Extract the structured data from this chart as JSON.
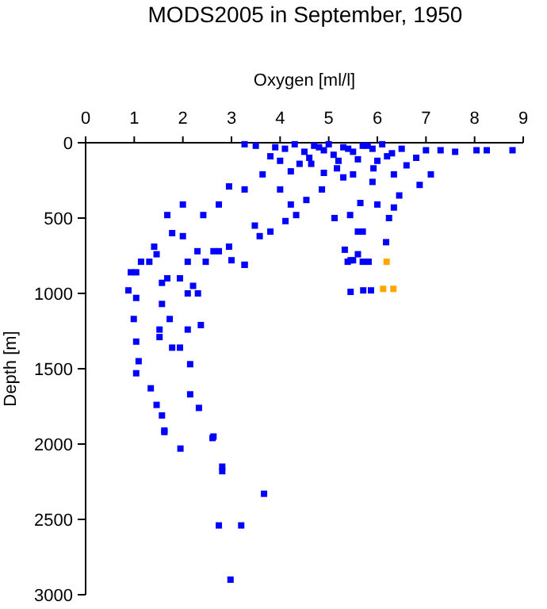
{
  "chart_data": {
    "type": "scatter",
    "title": "MODS2005 in September, 1950",
    "xlabel": "Oxygen [ml/l]",
    "ylabel": "Depth [m]",
    "xlim": [
      0,
      9
    ],
    "ylim": [
      3000,
      0
    ],
    "xticks": [
      0,
      1,
      2,
      3,
      4,
      5,
      6,
      7,
      8,
      9
    ],
    "yticks": [
      0,
      500,
      1000,
      1500,
      2000,
      2500,
      3000
    ],
    "grid": false,
    "marker": "square",
    "series": [
      {
        "color": "#0000ff",
        "x": [
          8.78,
          8.25,
          8.04,
          7.6,
          7.3,
          7.0,
          7.1,
          6.87,
          6.45,
          6.34,
          6.24,
          6.18,
          6.0,
          5.65,
          5.7,
          5.6,
          5.33,
          5.5,
          5.7,
          5.39,
          5.12,
          5.44,
          4.86,
          4.54,
          4.33,
          4.11,
          4.22,
          4.0,
          3.8,
          3.58,
          3.48,
          3.27,
          2.95,
          2.74,
          2.42,
          2.0,
          1.68,
          1.78,
          2.0,
          2.3,
          2.63,
          2.95,
          3.27,
          2.1,
          1.68,
          1.41,
          1.46,
          1.14,
          1.04,
          3.64,
          4.22,
          4.64,
          5.17,
          5.5,
          5.92,
          6.34,
          3.8,
          3.27,
          3.5,
          3.9,
          4.1,
          4.3,
          4.5,
          4.7,
          4.9,
          5.0,
          5.1,
          5.3,
          5.5,
          5.7,
          5.9,
          6.1,
          6.3,
          6.5,
          6.8,
          4.6,
          5.2,
          5.6,
          6.0,
          6.6,
          4.8,
          5.4,
          5.8,
          4.4,
          6.2,
          4.0,
          4.9,
          5.3,
          5.9,
          0.93,
          0.88,
          1.04,
          0.99,
          1.04,
          1.09,
          1.04,
          1.34,
          1.46,
          1.57,
          1.62,
          1.31,
          1.57,
          1.57,
          1.73,
          1.52,
          1.52,
          1.78,
          1.94,
          2.1,
          2.37,
          2.15,
          2.15,
          2.33,
          1.94,
          2.1,
          2.31,
          2.21,
          2.47,
          2.74,
          3.27,
          3.0,
          5.45,
          5.6,
          5.82,
          5.45,
          5.71,
          5.87,
          2.63,
          1.62,
          1.95,
          2.61,
          2.81,
          2.81,
          3.67,
          2.74,
          3.2,
          2.98
        ],
        "values": [
          50,
          50,
          50,
          60,
          50,
          50,
          210,
          280,
          350,
          430,
          500,
          660,
          410,
          400,
          590,
          590,
          710,
          780,
          790,
          790,
          500,
          480,
          310,
          380,
          480,
          520,
          410,
          310,
          590,
          620,
          550,
          310,
          290,
          410,
          480,
          410,
          480,
          600,
          620,
          720,
          720,
          690,
          810,
          790,
          900,
          690,
          740,
          790,
          860,
          210,
          190,
          140,
          170,
          210,
          170,
          210,
          90,
          10,
          20,
          30,
          40,
          10,
          60,
          20,
          50,
          10,
          80,
          30,
          60,
          20,
          40,
          10,
          70,
          40,
          100,
          100,
          120,
          110,
          120,
          150,
          30,
          40,
          20,
          140,
          90,
          120,
          200,
          230,
          260,
          860,
          980,
          1030,
          1170,
          1320,
          1450,
          1530,
          1630,
          1740,
          1810,
          1910,
          790,
          930,
          1070,
          1170,
          1240,
          1290,
          1360,
          1360,
          1240,
          1210,
          1470,
          1670,
          1760,
          900,
          1000,
          1000,
          950,
          790,
          720,
          810,
          780,
          780,
          740,
          790,
          990,
          980,
          980,
          1950,
          1920,
          2030,
          1960,
          2150,
          2180,
          2330,
          2540,
          2540,
          2900
        ]
      },
      {
        "color": "#ffa500",
        "x": [
          6.19,
          6.12,
          6.33
        ],
        "values": [
          790,
          970,
          970
        ]
      }
    ]
  }
}
